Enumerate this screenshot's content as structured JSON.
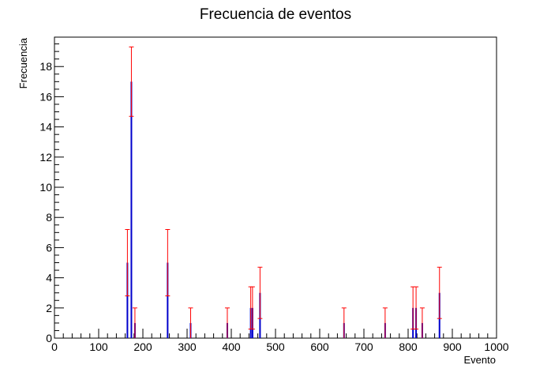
{
  "chart_data": {
    "type": "bar",
    "title": "Frecuencia de eventos",
    "xlabel": "Evento",
    "ylabel": "Frecuencia",
    "xlim": [
      0,
      1000
    ],
    "ylim": [
      0,
      19.95
    ],
    "x_ticks": [
      0,
      100,
      200,
      300,
      400,
      500,
      600,
      700,
      800,
      900,
      1000
    ],
    "y_ticks": [
      0,
      2,
      4,
      6,
      8,
      10,
      12,
      14,
      16,
      18
    ],
    "grid": false,
    "legend": "none",
    "colors": {
      "bar": "#0000cc",
      "error_bar": "#ff0000",
      "axis": "#000000"
    },
    "series": [
      {
        "x": [
          165,
          174,
          182,
          256,
          308,
          391,
          444,
          448,
          465,
          655,
          748,
          811,
          818,
          832,
          871
        ],
        "y": [
          5,
          17,
          1,
          5,
          1,
          1,
          2,
          2,
          3,
          1,
          1,
          2,
          2,
          1,
          3
        ],
        "yerr_low": [
          2.2,
          2.3,
          1,
          2.2,
          1,
          1,
          1.4,
          1.4,
          1.7,
          1,
          1,
          1.4,
          1.4,
          1,
          1.7
        ],
        "yerr_high": [
          2.2,
          2.3,
          1,
          2.2,
          1,
          1,
          1.4,
          1.4,
          1.7,
          1,
          1,
          1.4,
          1.4,
          1,
          1.7
        ]
      }
    ]
  }
}
